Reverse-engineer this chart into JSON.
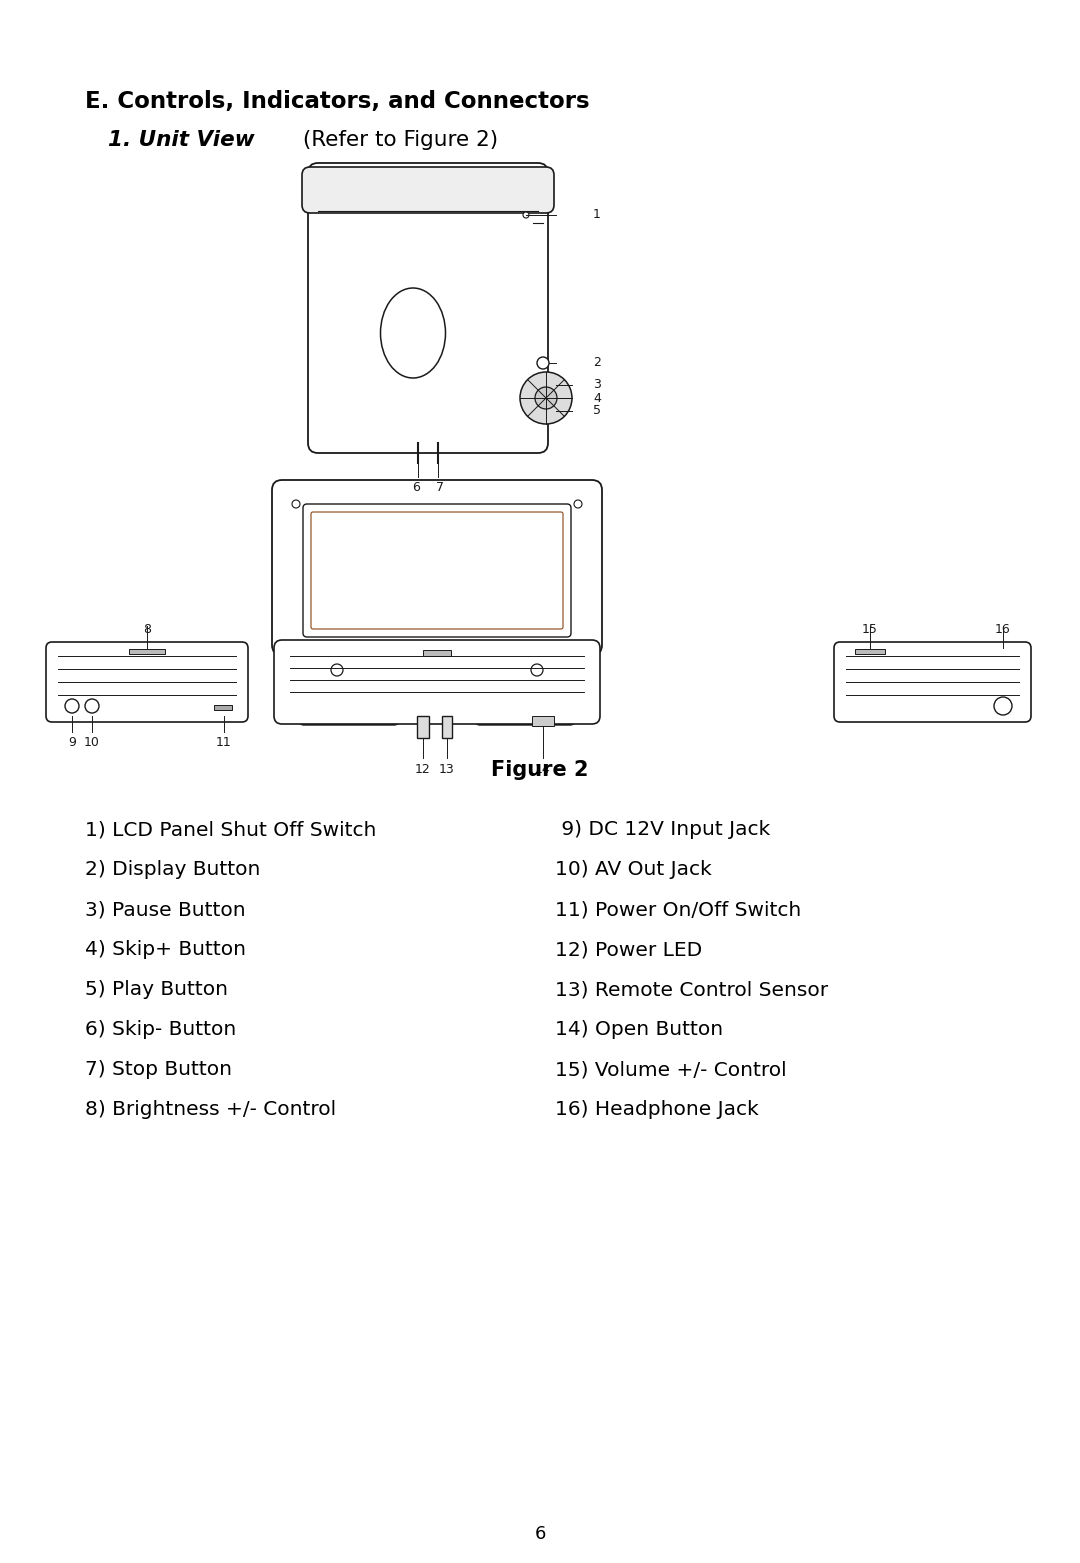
{
  "title": "E. Controls, Indicators, and Connectors",
  "subtitle_bold": "1. Unit View",
  "subtitle_normal": " (Refer to Figure 2)",
  "figure_caption": "Figure 2",
  "page_number": "6",
  "bg_color": "#ffffff",
  "text_color": "#000000",
  "left_items": [
    "1) LCD Panel Shut Off Switch",
    "2) Display Button",
    "3) Pause Button",
    "4) Skip+ Button",
    "5) Play Button",
    "6) Skip- Button",
    "7) Stop Button",
    "8) Brightness +/- Control"
  ],
  "right_items": [
    " 9) DC 12V Input Jack",
    "10) AV Out Jack",
    "11) Power On/Off Switch",
    "12) Power LED",
    "13) Remote Control Sensor",
    "14) Open Button",
    "15) Volume +/- Control",
    "16) Headphone Jack"
  ]
}
